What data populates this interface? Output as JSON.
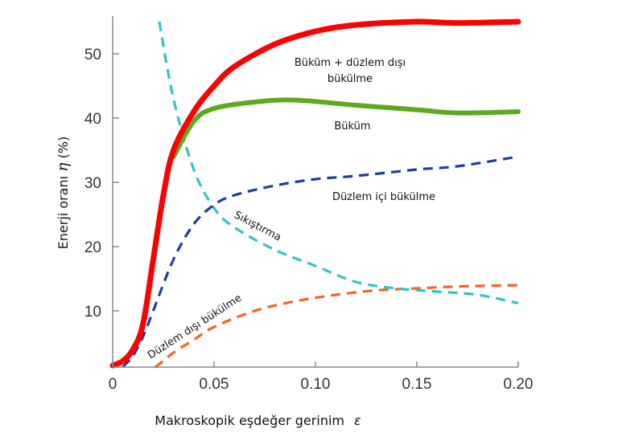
{
  "chart_data": {
    "type": "line",
    "title": "",
    "xlabel": "Makroskopik eşdeğer gerinim",
    "xlabel_symbol": "ε",
    "ylabel": "Enerji oranı",
    "ylabel_symbol": "η",
    "ylabel_unit": "(%)",
    "xlim": [
      0,
      0.2
    ],
    "ylim": [
      1.2,
      56
    ],
    "xticks": [
      0,
      0.05,
      0.1,
      0.15,
      0.2
    ],
    "xtick_labels": [
      "0",
      "0.05",
      "0.10",
      "0.15",
      "0.20"
    ],
    "yticks": [
      10,
      20,
      30,
      40,
      50
    ],
    "ytick_labels": [
      "10",
      "20",
      "30",
      "40",
      "50"
    ],
    "grid": false,
    "series": [
      {
        "name": "Büküm + düzlem dışı bükülme",
        "label_line2": "bükülme",
        "label_line1": "Büküm + düzlem dışı",
        "color": "#ff0000",
        "style": "solid",
        "x": [
          0,
          0.005,
          0.01,
          0.015,
          0.02,
          0.025,
          0.03,
          0.04,
          0.05,
          0.06,
          0.08,
          0.1,
          0.12,
          0.15,
          0.17,
          0.2
        ],
        "y": [
          1.5,
          2.2,
          4,
          8,
          18,
          28,
          35,
          41,
          45,
          48,
          51.5,
          53.5,
          54.5,
          55,
          54.8,
          55
        ]
      },
      {
        "name": "Büküm",
        "color": "#5aab1e",
        "style": "solid",
        "x": [
          0.03,
          0.04,
          0.05,
          0.07,
          0.09,
          0.12,
          0.15,
          0.17,
          0.2
        ],
        "y": [
          34,
          39.5,
          41.5,
          42.5,
          42.8,
          42,
          41.3,
          40.8,
          41
        ]
      },
      {
        "name": "Düzlem içi bükülme",
        "color": "#1f3d9e",
        "style": "dashed",
        "x": [
          0.005,
          0.01,
          0.015,
          0.02,
          0.03,
          0.04,
          0.05,
          0.06,
          0.08,
          0.1,
          0.12,
          0.15,
          0.17,
          0.2
        ],
        "y": [
          1.3,
          3,
          6,
          10,
          18,
          23.5,
          26.5,
          28,
          29.5,
          30.5,
          31,
          32,
          32.5,
          34
        ]
      },
      {
        "name": "Sıkıştırma",
        "color": "#2ec4c8",
        "style": "dashed",
        "x": [
          0.023,
          0.03,
          0.04,
          0.05,
          0.06,
          0.08,
          0.1,
          0.12,
          0.14,
          0.16,
          0.18,
          0.2
        ],
        "y": [
          55,
          43,
          32,
          26,
          23,
          19.5,
          17,
          14.5,
          13.5,
          13,
          12.5,
          11.2
        ]
      },
      {
        "name": "Düzlem dışı bükülme",
        "color": "#f26522",
        "style": "dashed",
        "x": [
          0.021,
          0.03,
          0.04,
          0.05,
          0.07,
          0.09,
          0.11,
          0.13,
          0.15,
          0.17,
          0.2
        ],
        "y": [
          1.2,
          3.5,
          5.5,
          7.5,
          10,
          11.5,
          12.5,
          13.2,
          13.5,
          13.8,
          14
        ]
      }
    ]
  }
}
